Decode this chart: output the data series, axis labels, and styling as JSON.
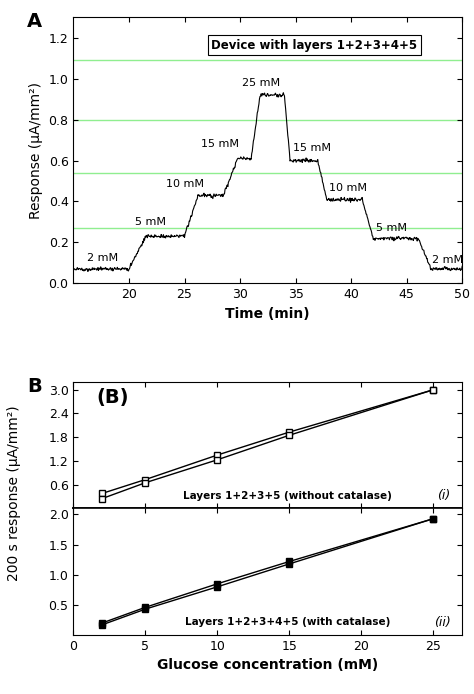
{
  "panel_A": {
    "title": "Device with layers 1+2+3+4+5",
    "xlabel": "Time (min)",
    "ylabel": "Response (μA/mm²)",
    "xlim": [
      15,
      50
    ],
    "ylim": [
      0.0,
      1.3
    ],
    "yticks": [
      0.0,
      0.2,
      0.4,
      0.6,
      0.8,
      1.0,
      1.2
    ],
    "xticks": [
      20,
      25,
      30,
      35,
      40,
      45,
      50
    ],
    "hlines": [
      0.27,
      0.54,
      0.8,
      1.09
    ],
    "hline_color": "#90EE90",
    "trace_segments": [
      [
        15.0,
        0.07
      ],
      [
        20.0,
        0.07
      ],
      [
        20.0,
        0.07
      ],
      [
        21.5,
        0.23
      ],
      [
        21.5,
        0.23
      ],
      [
        25.0,
        0.23
      ],
      [
        25.0,
        0.23
      ],
      [
        26.2,
        0.43
      ],
      [
        26.2,
        0.43
      ],
      [
        28.5,
        0.43
      ],
      [
        28.5,
        0.43
      ],
      [
        29.8,
        0.61
      ],
      [
        29.8,
        0.61
      ],
      [
        31.0,
        0.61
      ],
      [
        31.0,
        0.61
      ],
      [
        31.8,
        0.92
      ],
      [
        31.8,
        0.92
      ],
      [
        34.0,
        0.92
      ],
      [
        34.0,
        0.92
      ],
      [
        34.5,
        0.6
      ],
      [
        34.5,
        0.6
      ],
      [
        37.0,
        0.6
      ],
      [
        37.0,
        0.6
      ],
      [
        37.8,
        0.41
      ],
      [
        37.8,
        0.41
      ],
      [
        41.0,
        0.41
      ],
      [
        41.0,
        0.41
      ],
      [
        42.0,
        0.22
      ],
      [
        42.0,
        0.22
      ],
      [
        46.0,
        0.22
      ],
      [
        46.0,
        0.22
      ],
      [
        47.2,
        0.07
      ],
      [
        47.2,
        0.07
      ],
      [
        50.0,
        0.07
      ]
    ],
    "labels": [
      [
        16.2,
        0.1,
        "2 mM"
      ],
      [
        20.5,
        0.275,
        "5 mM"
      ],
      [
        23.3,
        0.46,
        "10 mM"
      ],
      [
        26.5,
        0.655,
        "15 mM"
      ],
      [
        30.2,
        0.955,
        "25 mM"
      ],
      [
        34.8,
        0.635,
        "15 mM"
      ],
      [
        38.0,
        0.44,
        "10 mM"
      ],
      [
        42.2,
        0.245,
        "5 mM"
      ],
      [
        47.3,
        0.09,
        "2 mM"
      ]
    ]
  },
  "panel_B_top": {
    "label_box": "(B)",
    "label_corner": "(i)",
    "legend": "Layers 1+2+3+5 (without catalase)",
    "xlim": [
      0,
      27
    ],
    "ylim": [
      0.0,
      3.2
    ],
    "yticks": [
      0.6,
      1.2,
      1.8,
      2.4,
      3.0
    ],
    "xticks": [
      0,
      5,
      10,
      15,
      20,
      25
    ],
    "x_data": [
      2,
      5,
      10,
      15,
      25
    ],
    "y_line1": [
      0.38,
      0.73,
      1.35,
      1.93,
      3.0
    ],
    "y_line2": [
      0.25,
      0.65,
      1.23,
      1.85,
      3.0
    ]
  },
  "panel_B_bottom": {
    "label_corner": "(ii)",
    "legend": "Layers 1+2+3+4+5 (with catalase)",
    "xlabel": "Glucose concentration (mM)",
    "xlim": [
      0,
      27
    ],
    "ylim": [
      0.0,
      2.1
    ],
    "yticks": [
      0.5,
      1.0,
      1.5,
      2.0
    ],
    "xticks": [
      0,
      5,
      10,
      15,
      20,
      25
    ],
    "x_data": [
      2,
      5,
      10,
      15,
      25
    ],
    "y_line1": [
      0.2,
      0.46,
      0.85,
      1.22,
      1.93
    ],
    "y_line2": [
      0.17,
      0.43,
      0.8,
      1.18,
      1.93
    ]
  },
  "ylabel_B": "200 s response (μA/mm²)",
  "bg_color": "#ffffff",
  "line_color": "#000000",
  "font_size_label": 10,
  "font_size_tick": 9,
  "font_size_annot": 8
}
